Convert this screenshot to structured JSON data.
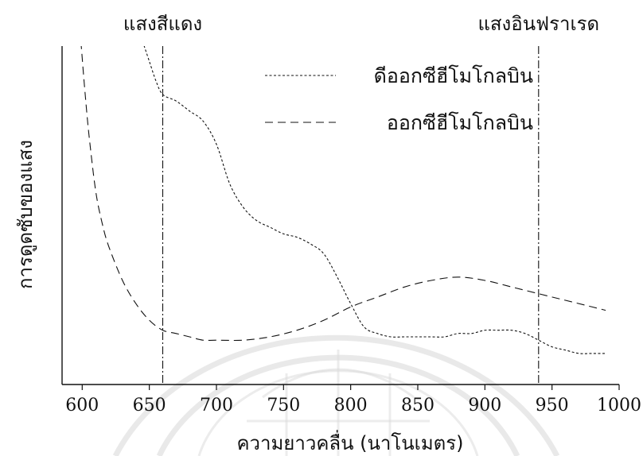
{
  "chart_data": {
    "type": "line",
    "title": "",
    "xlabel": "ความยาวคลื่น (นาโนเมตร)",
    "ylabel": "การดูดซับของแสง",
    "xlim": [
      585,
      1000
    ],
    "ylim": [
      0,
      1
    ],
    "x_ticks": [
      600,
      650,
      700,
      750,
      800,
      850,
      900,
      950,
      1000
    ],
    "x_tick_labels": [
      "600",
      "650",
      "700",
      "750",
      "800",
      "850",
      "900",
      "950",
      "1000"
    ],
    "y_ticks_shown": false,
    "grid": false,
    "legend_position": "top-right",
    "region_markers": [
      {
        "label": "แสงสีแดง",
        "x": 660
      },
      {
        "label": "แสงอินฟราเรด",
        "x": 940
      }
    ],
    "series": [
      {
        "name": "ดีออกซีฮีโมโกลบิน",
        "line_style": "dotted",
        "x": [
          645,
          650,
          655,
          660,
          670,
          680,
          690,
          700,
          710,
          720,
          730,
          740,
          750,
          760,
          770,
          780,
          790,
          800,
          810,
          820,
          830,
          840,
          850,
          860,
          870,
          880,
          890,
          900,
          910,
          920,
          930,
          940,
          950,
          960,
          970,
          980,
          990
        ],
        "y": [
          1.0,
          0.94,
          0.88,
          0.84,
          0.82,
          0.79,
          0.76,
          0.69,
          0.57,
          0.5,
          0.46,
          0.44,
          0.42,
          0.41,
          0.39,
          0.36,
          0.29,
          0.21,
          0.14,
          0.12,
          0.11,
          0.11,
          0.11,
          0.11,
          0.11,
          0.12,
          0.12,
          0.13,
          0.13,
          0.13,
          0.12,
          0.1,
          0.08,
          0.07,
          0.06,
          0.06,
          0.06
        ]
      },
      {
        "name": "ออกซีฮีโมโกลบิน",
        "line_style": "dashed",
        "x": [
          599,
          600,
          602,
          605,
          610,
          615,
          620,
          630,
          640,
          650,
          660,
          670,
          680,
          690,
          700,
          720,
          740,
          760,
          780,
          800,
          820,
          840,
          860,
          880,
          900,
          920,
          940,
          960,
          980,
          990
        ],
        "y": [
          1.0,
          0.95,
          0.85,
          0.72,
          0.55,
          0.45,
          0.38,
          0.28,
          0.21,
          0.16,
          0.13,
          0.12,
          0.11,
          0.1,
          0.1,
          0.1,
          0.11,
          0.13,
          0.16,
          0.2,
          0.23,
          0.26,
          0.28,
          0.29,
          0.28,
          0.26,
          0.24,
          0.22,
          0.2,
          0.19
        ]
      }
    ]
  }
}
